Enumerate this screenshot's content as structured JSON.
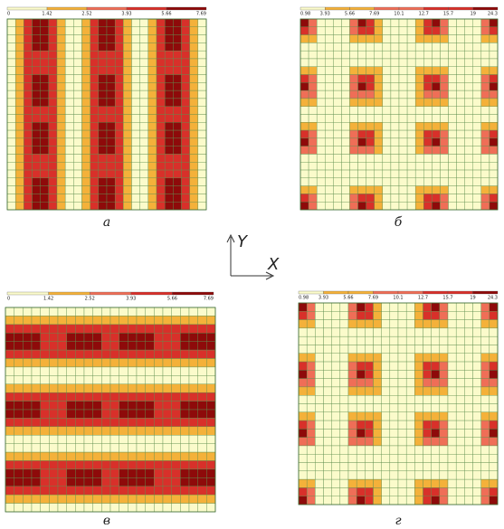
{
  "panels": [
    {
      "label": "а",
      "scale": [
        "0",
        "1.42",
        "2.52",
        "3.93",
        "5.66",
        "7.69"
      ]
    },
    {
      "label": "б",
      "scale": [
        "0.98",
        "3.93",
        "5.66",
        "7.69",
        "10.1",
        "12.7",
        "15.7",
        "19",
        "24.3"
      ]
    },
    {
      "label": "в",
      "scale": [
        "0",
        "1.42",
        "2.52",
        "3.93",
        "5.66",
        "7.69"
      ]
    },
    {
      "label": "г",
      "scale": [
        "0.98",
        "3.93",
        "5.66",
        "7.69",
        "10.1",
        "12.7",
        "15.7",
        "19",
        "24.3"
      ]
    }
  ],
  "axes": {
    "y": "Y",
    "x": "X"
  }
}
